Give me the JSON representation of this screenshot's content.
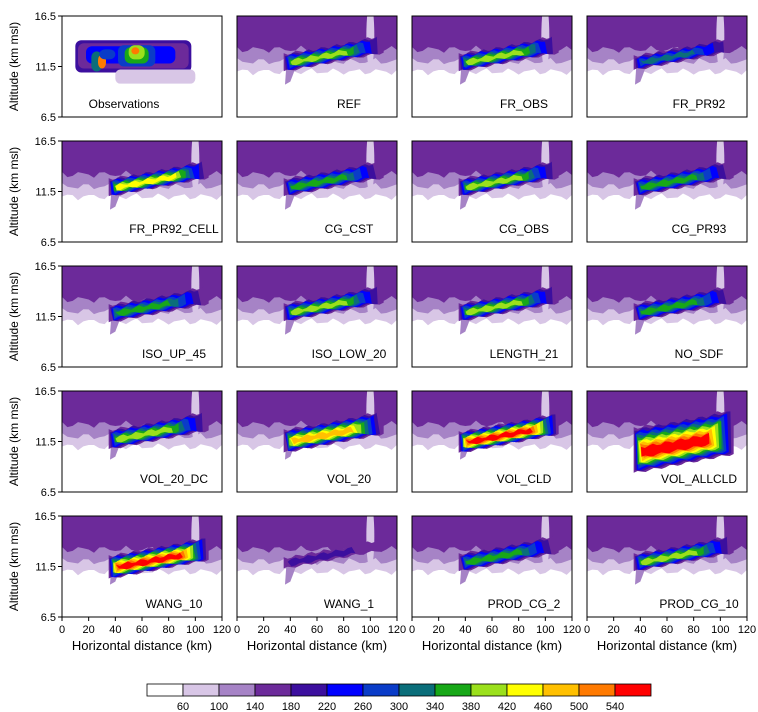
{
  "figure": {
    "ylabel": "Altitude (km msl)",
    "xlabel": "Horizontal distance (km)"
  },
  "colorbar": {
    "levels": [
      "60",
      "100",
      "140",
      "180",
      "220",
      "260",
      "300",
      "340",
      "380",
      "420",
      "460",
      "500",
      "540"
    ],
    "colors": [
      "#ffffff",
      "#d8c6e6",
      "#a683c6",
      "#6c2a9a",
      "#3c0f9e",
      "#0000ff",
      "#0a3cc8",
      "#0b6e7a",
      "#18a818",
      "#9be01c",
      "#ffff00",
      "#ffc000",
      "#ff7a00",
      "#ff0000"
    ]
  },
  "chart_data": {
    "type": "heatmap",
    "x_ticks": [
      "0",
      "20",
      "40",
      "60",
      "80",
      "100",
      "120"
    ],
    "xlim": [
      0,
      120
    ],
    "y_ticks": [
      "16.5",
      "11.5",
      "6.5"
    ],
    "ylim": [
      6.5,
      16.5
    ],
    "panels": [
      {
        "label": "Observations",
        "kind": "obs"
      },
      {
        "label": "REF",
        "kind": "model",
        "intensity": 0.55,
        "base": 12.0,
        "spread": 1
      },
      {
        "label": "FR_OBS",
        "kind": "model",
        "intensity": 0.6,
        "base": 12.0,
        "spread": 1
      },
      {
        "label": "FR_PR92",
        "kind": "model",
        "intensity": 0.35,
        "base": 12.0,
        "spread": 0.8
      },
      {
        "label": "FR_PR92_CELL",
        "kind": "model",
        "intensity": 0.7,
        "base": 12.0,
        "spread": 1
      },
      {
        "label": "CG_CST",
        "kind": "model",
        "intensity": 0.5,
        "base": 12.0,
        "spread": 1
      },
      {
        "label": "CG_OBS",
        "kind": "model",
        "intensity": 0.55,
        "base": 12.0,
        "spread": 1
      },
      {
        "label": "CG_PR93",
        "kind": "model",
        "intensity": 0.5,
        "base": 12.0,
        "spread": 1
      },
      {
        "label": "ISO_UP_45",
        "kind": "model",
        "intensity": 0.45,
        "base": 11.9,
        "spread": 1
      },
      {
        "label": "ISO_LOW_20",
        "kind": "model",
        "intensity": 0.55,
        "base": 12.0,
        "spread": 1
      },
      {
        "label": "LENGTH_21",
        "kind": "model",
        "intensity": 0.55,
        "base": 12.0,
        "spread": 1
      },
      {
        "label": "NO_SDF",
        "kind": "model",
        "intensity": 0.5,
        "base": 12.0,
        "spread": 1
      },
      {
        "label": "VOL_20_DC",
        "kind": "model",
        "intensity": 0.55,
        "base": 11.8,
        "spread": 1.1
      },
      {
        "label": "VOL_20",
        "kind": "model",
        "intensity": 0.8,
        "base": 11.6,
        "spread": 1.3
      },
      {
        "label": "VOL_CLD",
        "kind": "model",
        "intensity": 0.95,
        "base": 11.5,
        "spread": 1.2
      },
      {
        "label": "VOL_ALLCLD",
        "kind": "model",
        "intensity": 1.0,
        "base": 10.5,
        "spread": 2.6
      },
      {
        "label": "WANG_10",
        "kind": "model",
        "intensity": 0.95,
        "base": 11.5,
        "spread": 1.3
      },
      {
        "label": "WANG_1",
        "kind": "model",
        "intensity": 0.1,
        "base": 12.0,
        "spread": 0.6
      },
      {
        "label": "PROD_CG_2",
        "kind": "model",
        "intensity": 0.5,
        "base": 12.0,
        "spread": 1
      },
      {
        "label": "PROD_CG_10",
        "kind": "model",
        "intensity": 0.55,
        "base": 12.0,
        "spread": 1
      }
    ]
  }
}
